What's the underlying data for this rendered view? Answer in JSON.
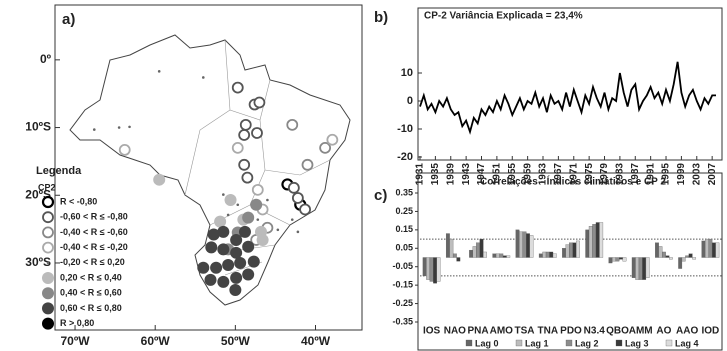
{
  "chart_data": [
    {
      "type": "map",
      "panel_label": "a)",
      "legend_title": "Legenda",
      "legend_subtitle": "CP2",
      "xlim": [
        -72.5,
        -34.2
      ],
      "ylim": [
        -39.9,
        8.1
      ],
      "xticks": [
        {
          "value": -70,
          "label": "70ºW"
        },
        {
          "value": -60,
          "label": "60ºW"
        },
        {
          "value": -50,
          "label": "50ºW"
        },
        {
          "value": -40,
          "label": "40ºW"
        }
      ],
      "yticks": [
        {
          "value": 0,
          "label": "0º"
        },
        {
          "value": -10,
          "label": "10ºS"
        },
        {
          "value": -20,
          "label": "20ºS"
        },
        {
          "value": -30,
          "label": "30ºS"
        }
      ],
      "series": [
        {
          "name": "R < -0,80",
          "marker": "ring",
          "color": "#000000",
          "x": [
            -41.9,
            -43.5
          ],
          "values": [
            -21.4,
            -18.4
          ]
        },
        {
          "name": "-0,60 < R ≤ -0,80",
          "marker": "ring",
          "color": "#555555",
          "x": [
            -49.7,
            -47.6,
            -47.0,
            -48.7,
            -48.9,
            -47.3,
            -48.9,
            -48.5,
            -42.7,
            -42.2,
            -41.3
          ],
          "values": [
            -4.1,
            -6.6,
            -6.3,
            -9.6,
            -11.1,
            -10.8,
            -15.5,
            -17.4,
            -18.9,
            -20.4,
            -22.1
          ]
        },
        {
          "name": "-0,40 < R ≤ -0,60",
          "marker": "ring",
          "color": "#888888",
          "x": [
            -42.9,
            -38.8,
            -41.0,
            -47.4,
            -46.0
          ],
          "values": [
            -9.6,
            -13.0,
            -15.5,
            -26.6,
            -24.8
          ]
        },
        {
          "name": "-0,40 < R ≤ -0,20",
          "marker": "ring",
          "color": "#aaaaaa",
          "x": [
            -63.8,
            -49.7,
            -47.2,
            -46.6,
            -37.9
          ],
          "values": [
            -13.3,
            -13.0,
            -19.2,
            -22.1,
            -11.8
          ]
        },
        {
          "name": "-0,20 < R ≤ 0,20",
          "marker": "dot",
          "color": "#666666",
          "x": [
            -59.5,
            -54.0,
            -64.5,
            -63.2,
            -67.6,
            -51.5,
            -49.7,
            -47.2,
            -44.7,
            -42.2,
            -50.9,
            -46.0,
            -42.9
          ],
          "values": [
            -1.7,
            -2.6,
            -10.0,
            -9.9,
            -10.3,
            -19.9,
            -21.4,
            -23.6,
            -25.1,
            -25.4,
            -22.9,
            -20.7,
            -23.6
          ]
        },
        {
          "name": "0,20 < R ≤ 0,40",
          "marker": "disc",
          "color": "#bbbbbb",
          "x": [
            -51.9,
            -49.0,
            -46.8,
            -46.6,
            -59.5,
            -50.6
          ],
          "values": [
            -23.9,
            -23.6,
            -25.4,
            -26.6,
            -17.7,
            -20.7
          ]
        },
        {
          "name": "0,40 < R ≤ 0,60",
          "marker": "disc",
          "color": "#888888",
          "x": [
            -49.7,
            -48.4,
            -47.4,
            -50.9
          ],
          "values": [
            -25.5,
            -23.3,
            -21.4,
            -28.0
          ]
        },
        {
          "name": "0,60 < R ≤ 0,80",
          "marker": "disc",
          "color": "#444444",
          "x": [
            -52.7,
            -51.5,
            -49.9,
            -48.8,
            -53.0,
            -51.5,
            -49.9,
            -48.4,
            -54.0,
            -52.4,
            -50.9,
            -49.4,
            -47.7,
            -53.1,
            -51.5,
            -49.9,
            -48.4,
            -50.0
          ],
          "values": [
            -25.8,
            -25.4,
            -26.6,
            -25.4,
            -27.7,
            -28.0,
            -28.5,
            -27.6,
            -30.7,
            -30.7,
            -30.3,
            -30.0,
            -29.8,
            -32.5,
            -32.8,
            -32.2,
            -31.7,
            -34.0
          ]
        },
        {
          "name": "R > 0,80",
          "marker": "disc",
          "color": "#000000",
          "x": [],
          "values": []
        }
      ]
    },
    {
      "type": "line",
      "panel_label": "b)",
      "title": "CP-2 Variância Explicada = 23,4%",
      "color": "#000000",
      "xlim": [
        1931,
        2008
      ],
      "ylim": [
        -20,
        20
      ],
      "xticks": [
        1931,
        1935,
        1939,
        1943,
        1947,
        1951,
        1955,
        1959,
        1963,
        1967,
        1971,
        1975,
        1979,
        1983,
        1987,
        1991,
        1995,
        1999,
        2003,
        2007
      ],
      "yticks": [
        -20,
        -10,
        0,
        10
      ],
      "x": [
        1931,
        1932,
        1933,
        1934,
        1935,
        1936,
        1937,
        1938,
        1939,
        1940,
        1941,
        1942,
        1943,
        1944,
        1945,
        1946,
        1947,
        1948,
        1949,
        1950,
        1951,
        1952,
        1953,
        1954,
        1955,
        1956,
        1957,
        1958,
        1959,
        1960,
        1961,
        1962,
        1963,
        1964,
        1965,
        1966,
        1967,
        1968,
        1969,
        1970,
        1971,
        1972,
        1973,
        1974,
        1975,
        1976,
        1977,
        1978,
        1979,
        1980,
        1981,
        1982,
        1983,
        1984,
        1985,
        1986,
        1987,
        1988,
        1989,
        1990,
        1991,
        1992,
        1993,
        1994,
        1995,
        1996,
        1997,
        1998,
        1999,
        2000,
        2001,
        2002,
        2003,
        2004,
        2005,
        2006,
        2007,
        2008
      ],
      "values": [
        -2,
        2,
        -3,
        -1,
        -4,
        0,
        -2,
        1,
        -3,
        -5,
        -4,
        -9,
        -7,
        -11,
        -6,
        -8,
        -3,
        -5,
        -2,
        -4,
        0,
        -3,
        2,
        -1,
        -5,
        -2,
        1,
        -3,
        0,
        -1,
        3,
        -2,
        1,
        -4,
        2,
        -1,
        0,
        -3,
        3,
        -2,
        4,
        0,
        -4,
        2,
        -1,
        5,
        1,
        -2,
        3,
        -3,
        1,
        0,
        10,
        3,
        -2,
        4,
        6,
        -3,
        0,
        2,
        5,
        1,
        3,
        -1,
        4,
        0,
        6,
        14,
        3,
        -2,
        2,
        4,
        0,
        -3,
        1,
        -1,
        2,
        2
      ]
    },
    {
      "type": "bar",
      "panel_label": "c)",
      "title": "Correlações - Índices climáticos e CP 2",
      "categories": [
        "IOS",
        "NAO",
        "PNA",
        "AMO",
        "TSA",
        "TNA",
        "PDO",
        "N3.4",
        "QBO",
        "AMM",
        "AO",
        "AAO",
        "IOD"
      ],
      "ylim": [
        -0.35,
        0.35
      ],
      "yticks": [
        0.35,
        0.25,
        0.15,
        0.05,
        -0.05,
        -0.15,
        -0.25,
        -0.35
      ],
      "significance_lines": [
        0.1,
        -0.1
      ],
      "series": [
        {
          "name": "Lag 0",
          "color": "#666666",
          "values": [
            -0.1,
            0.13,
            0.04,
            0.02,
            0.15,
            0.02,
            0.05,
            0.15,
            -0.03,
            -0.11,
            0.08,
            -0.06,
            0.09
          ]
        },
        {
          "name": "Lag 1",
          "color": "#bdbdbd",
          "values": [
            -0.12,
            0.1,
            0.06,
            0.02,
            0.14,
            0.03,
            0.07,
            0.17,
            -0.02,
            -0.12,
            0.06,
            -0.02,
            0.1
          ]
        },
        {
          "name": "Lag 2",
          "color": "#8c8c8c",
          "values": [
            -0.13,
            0.02,
            0.08,
            0.02,
            0.14,
            0.03,
            0.08,
            0.18,
            -0.02,
            -0.12,
            0.03,
            0.01,
            0.1
          ]
        },
        {
          "name": "Lag 3",
          "color": "#3a3a3a",
          "values": [
            -0.14,
            -0.02,
            0.1,
            0.01,
            0.13,
            0.03,
            0.08,
            0.19,
            -0.01,
            -0.12,
            0.01,
            0.02,
            0.08
          ]
        },
        {
          "name": "Lag 4",
          "color": "#dcdcdc",
          "values": [
            -0.13,
            0.0,
            0.03,
            0.01,
            0.12,
            0.02,
            0.09,
            0.19,
            -0.02,
            -0.11,
            -0.01,
            -0.01,
            0.08
          ]
        }
      ]
    }
  ]
}
